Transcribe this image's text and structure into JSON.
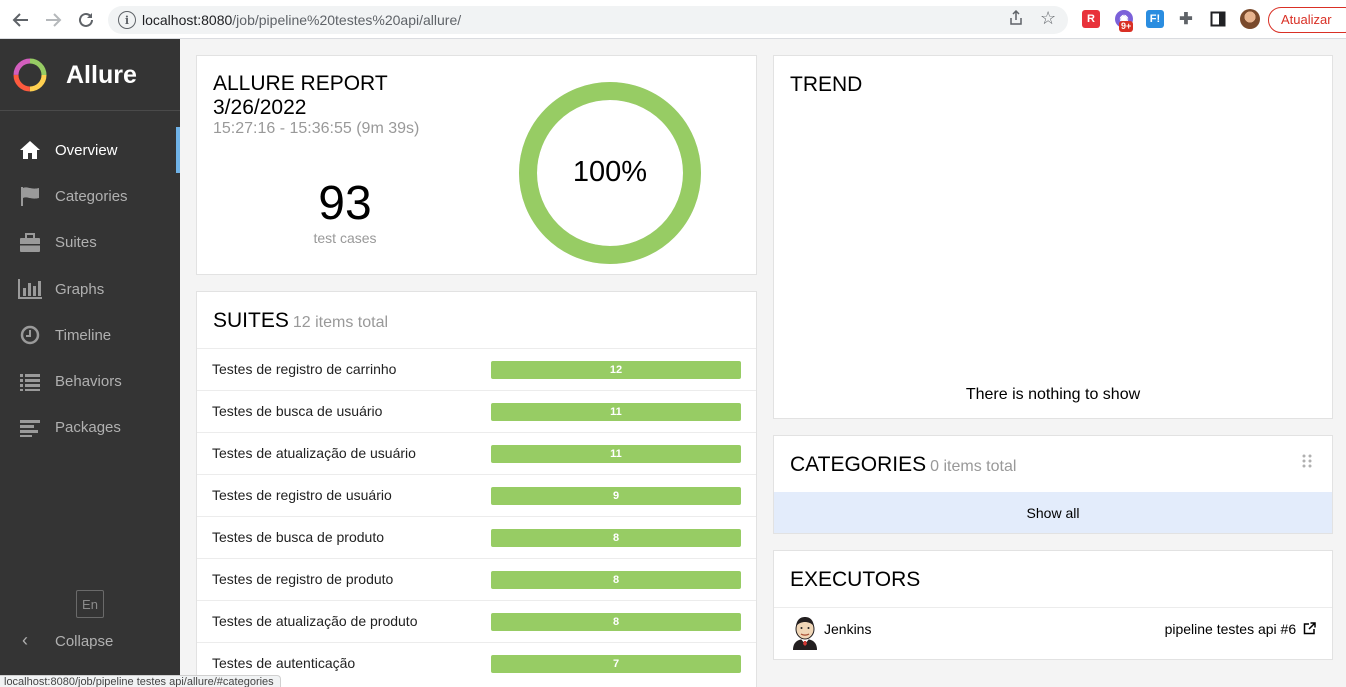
{
  "browser": {
    "url_host": "localhost:8080",
    "url_path": "/job/pipeline%20testes%20api/allure/",
    "update_button": "Atualizar",
    "extension_badge": "9+",
    "extension_f": "F!",
    "status_url": "localhost:8080/job/pipeline testes api/allure/#categories"
  },
  "sidebar": {
    "brand": "Allure",
    "items": [
      {
        "label": "Overview",
        "icon": "home-icon",
        "active": true
      },
      {
        "label": "Categories",
        "icon": "flag-icon",
        "active": false
      },
      {
        "label": "Suites",
        "icon": "briefcase-icon",
        "active": false
      },
      {
        "label": "Graphs",
        "icon": "bar-chart-icon",
        "active": false
      },
      {
        "label": "Timeline",
        "icon": "clock-icon",
        "active": false
      },
      {
        "label": "Behaviors",
        "icon": "list-icon",
        "active": false
      },
      {
        "label": "Packages",
        "icon": "align-left-icon",
        "active": false
      }
    ],
    "language": "En",
    "collapse": "Collapse"
  },
  "summary": {
    "title_line1": "ALLURE REPORT",
    "title_line2": "3/26/2022",
    "time": "15:27:16 - 15:36:55 (9m 39s)",
    "count": "93",
    "count_label": "test cases",
    "percent": "100%",
    "pass_fraction": 1.0,
    "color_passed": "#97cc64"
  },
  "suites": {
    "title": "SUITES",
    "subtitle": "12 items total",
    "rows": [
      {
        "name": "Testes de registro de carrinho",
        "count": "12"
      },
      {
        "name": "Testes de busca de usuário",
        "count": "11"
      },
      {
        "name": "Testes de atualização de usuário",
        "count": "11"
      },
      {
        "name": "Testes de registro de usuário",
        "count": "9"
      },
      {
        "name": "Testes de busca de produto",
        "count": "8"
      },
      {
        "name": "Testes de registro de produto",
        "count": "8"
      },
      {
        "name": "Testes de atualização de produto",
        "count": "8"
      },
      {
        "name": "Testes de autenticação",
        "count": "7"
      }
    ]
  },
  "trend": {
    "title": "TREND",
    "empty": "There is nothing to show"
  },
  "categories": {
    "title": "CATEGORIES",
    "subtitle": "0 items total",
    "show_all": "Show all"
  },
  "executors": {
    "title": "EXECUTORS",
    "name": "Jenkins",
    "build": "pipeline testes api #6"
  }
}
